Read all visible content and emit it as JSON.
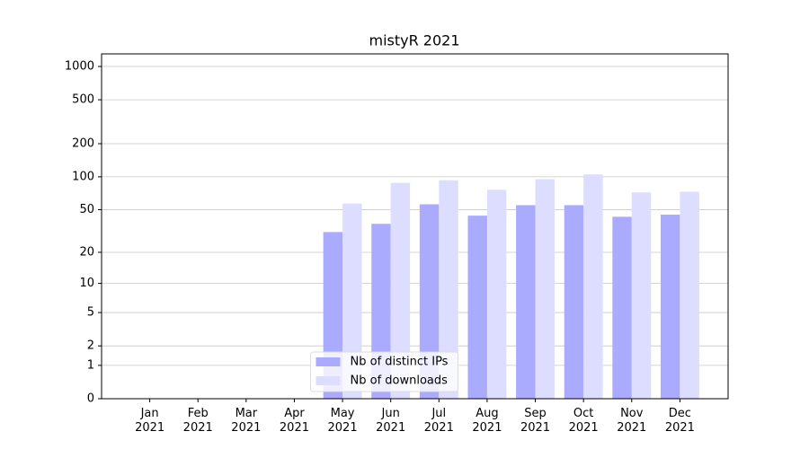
{
  "chart_data": {
    "type": "bar",
    "title": "mistyR 2021",
    "categories": [
      "Jan\n2021",
      "Feb\n2021",
      "Mar\n2021",
      "Apr\n2021",
      "May\n2021",
      "Jun\n2021",
      "Jul\n2021",
      "Aug\n2021",
      "Sep\n2021",
      "Oct\n2021",
      "Nov\n2021",
      "Dec\n2021"
    ],
    "series": [
      {
        "name": "Nb of distinct IPs",
        "color": "#aaaaff",
        "values": [
          0,
          0,
          0,
          0,
          31,
          37,
          56,
          44,
          55,
          55,
          43,
          45
        ]
      },
      {
        "name": "Nb of downloads",
        "color": "#ddddff",
        "values": [
          0,
          0,
          0,
          0,
          57,
          88,
          93,
          76,
          95,
          105,
          72,
          73
        ]
      }
    ],
    "yscale": "log1p",
    "ylim": [
      0,
      1300
    ],
    "yticks": [
      0,
      1,
      2,
      5,
      10,
      20,
      50,
      100,
      200,
      500,
      1000
    ],
    "grid": true,
    "legend": "lower center"
  }
}
